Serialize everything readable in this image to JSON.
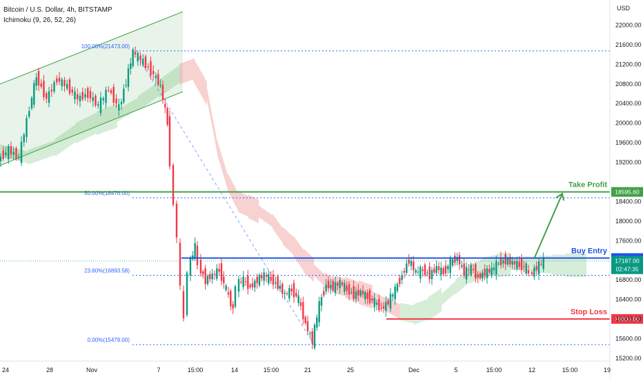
{
  "header": {
    "symbol_title": "Bitcoin / U.S. Dollar, 4h, BITSTAMP",
    "indicator": "Ichimoku (9, 26, 52, 26)",
    "currency": "USD"
  },
  "chart_data": {
    "type": "candlestick",
    "ylim": [
      15200,
      22400
    ],
    "y_ticks": [
      "22000.00",
      "21600.00",
      "21200.00",
      "20800.00",
      "20400.00",
      "20000.00",
      "19600.00",
      "19200.00",
      "18400.00",
      "18000.00",
      "17600.00",
      "16800.00",
      "16400.00",
      "16000.00",
      "15600.00",
      "15200.00"
    ],
    "x_ticks": [
      "24",
      "28",
      "Nov",
      "7",
      "15:00",
      "14",
      "15:00",
      "21",
      "25",
      "Dec",
      "5",
      "15:00",
      "12",
      "15:00",
      "19"
    ],
    "fibonacci": [
      {
        "label": "100.00%(21473.00)",
        "value": 21473
      },
      {
        "label": "50.00%(18476.00)",
        "value": 18476
      },
      {
        "label": "23.60%(16893.58)",
        "value": 16893.58
      },
      {
        "label": "0.00%(15479.00)",
        "value": 15479
      }
    ],
    "levels": [
      {
        "name": "Take Profit",
        "value": 18595.6,
        "price_label": "18595.60",
        "color": "#43a047"
      },
      {
        "name": "Buy Entry",
        "value": 17246.66,
        "price_label": "17246.66",
        "color": "#1e53e5"
      },
      {
        "name": "Stop Loss",
        "value": 16004,
        "price_label": "16004.00",
        "color": "#f23645"
      }
    ],
    "current_price": {
      "value": 17187,
      "label": "17187.00",
      "countdown": "02:47:35",
      "color": "#089981"
    },
    "dotted_level": {
      "value": 17187
    },
    "channel_color": "#43a047",
    "bull_color": "#089981",
    "bear_color": "#f23645",
    "cloud_bull_color": "#a5d6a7",
    "cloud_bear_color": "#ef9a9a",
    "price_path": [
      [
        0,
        19250
      ],
      [
        15,
        19450
      ],
      [
        30,
        19300
      ],
      [
        45,
        20300
      ],
      [
        55,
        20950
      ],
      [
        70,
        20500
      ],
      [
        85,
        20900
      ],
      [
        100,
        20750
      ],
      [
        115,
        20500
      ],
      [
        130,
        20600
      ],
      [
        145,
        20350
      ],
      [
        160,
        20700
      ],
      [
        175,
        20300
      ],
      [
        185,
        20850
      ],
      [
        195,
        21450
      ],
      [
        210,
        21250
      ],
      [
        225,
        21000
      ],
      [
        235,
        20750
      ],
      [
        245,
        20000
      ],
      [
        250,
        19200
      ],
      [
        255,
        18300
      ],
      [
        260,
        17700
      ],
      [
        265,
        16600
      ],
      [
        270,
        16000
      ],
      [
        275,
        17000
      ],
      [
        285,
        17500
      ],
      [
        290,
        17100
      ],
      [
        300,
        16800
      ],
      [
        310,
        16900
      ],
      [
        320,
        17000
      ],
      [
        330,
        16600
      ],
      [
        340,
        16200
      ],
      [
        345,
        16700
      ],
      [
        355,
        16800
      ],
      [
        365,
        16650
      ],
      [
        375,
        16800
      ],
      [
        385,
        16900
      ],
      [
        395,
        16800
      ],
      [
        405,
        16700
      ],
      [
        415,
        16500
      ],
      [
        425,
        16600
      ],
      [
        435,
        16400
      ],
      [
        445,
        15900
      ],
      [
        455,
        15550
      ],
      [
        465,
        16300
      ],
      [
        475,
        16700
      ],
      [
        485,
        16650
      ],
      [
        495,
        16750
      ],
      [
        505,
        16600
      ],
      [
        515,
        16500
      ],
      [
        525,
        16550
      ],
      [
        535,
        16450
      ],
      [
        545,
        16350
      ],
      [
        555,
        16200
      ],
      [
        565,
        16350
      ],
      [
        575,
        16600
      ],
      [
        585,
        16900
      ],
      [
        595,
        17200
      ],
      [
        605,
        16950
      ],
      [
        615,
        17000
      ],
      [
        625,
        16900
      ],
      [
        635,
        17050
      ],
      [
        645,
        16950
      ],
      [
        655,
        17150
      ],
      [
        665,
        17250
      ],
      [
        675,
        16950
      ],
      [
        685,
        17050
      ],
      [
        695,
        16850
      ],
      [
        705,
        16950
      ],
      [
        715,
        17000
      ],
      [
        725,
        17150
      ],
      [
        735,
        17200
      ],
      [
        745,
        17150
      ],
      [
        755,
        17100
      ],
      [
        765,
        17050
      ],
      [
        770,
        16900
      ],
      [
        780,
        17050
      ],
      [
        790,
        17180
      ]
    ],
    "cloud_path": [
      [
        0,
        19450
      ],
      [
        40,
        19300
      ],
      [
        80,
        19500
      ],
      [
        110,
        19800
      ],
      [
        140,
        20000
      ],
      [
        170,
        20150
      ],
      [
        200,
        20400
      ],
      [
        230,
        20700
      ],
      [
        260,
        21000
      ],
      [
        280,
        21100
      ],
      [
        300,
        20600
      ],
      [
        315,
        19500
      ],
      [
        330,
        18800
      ],
      [
        345,
        18400
      ],
      [
        360,
        18300
      ],
      [
        375,
        18200
      ],
      [
        395,
        18000
      ],
      [
        410,
        17700
      ],
      [
        425,
        17500
      ],
      [
        440,
        17200
      ],
      [
        455,
        17000
      ],
      [
        470,
        16800
      ],
      [
        485,
        16700
      ],
      [
        500,
        16650
      ],
      [
        520,
        16550
      ],
      [
        540,
        16450
      ],
      [
        560,
        16300
      ],
      [
        580,
        16150
      ],
      [
        600,
        16100
      ],
      [
        620,
        16200
      ],
      [
        640,
        16400
      ],
      [
        660,
        16650
      ],
      [
        680,
        16900
      ],
      [
        700,
        17050
      ],
      [
        720,
        17100
      ],
      [
        740,
        17120
      ],
      [
        760,
        17130
      ],
      [
        780,
        17120
      ],
      [
        800,
        17110
      ],
      [
        820,
        17100
      ],
      [
        850,
        17100
      ]
    ]
  }
}
